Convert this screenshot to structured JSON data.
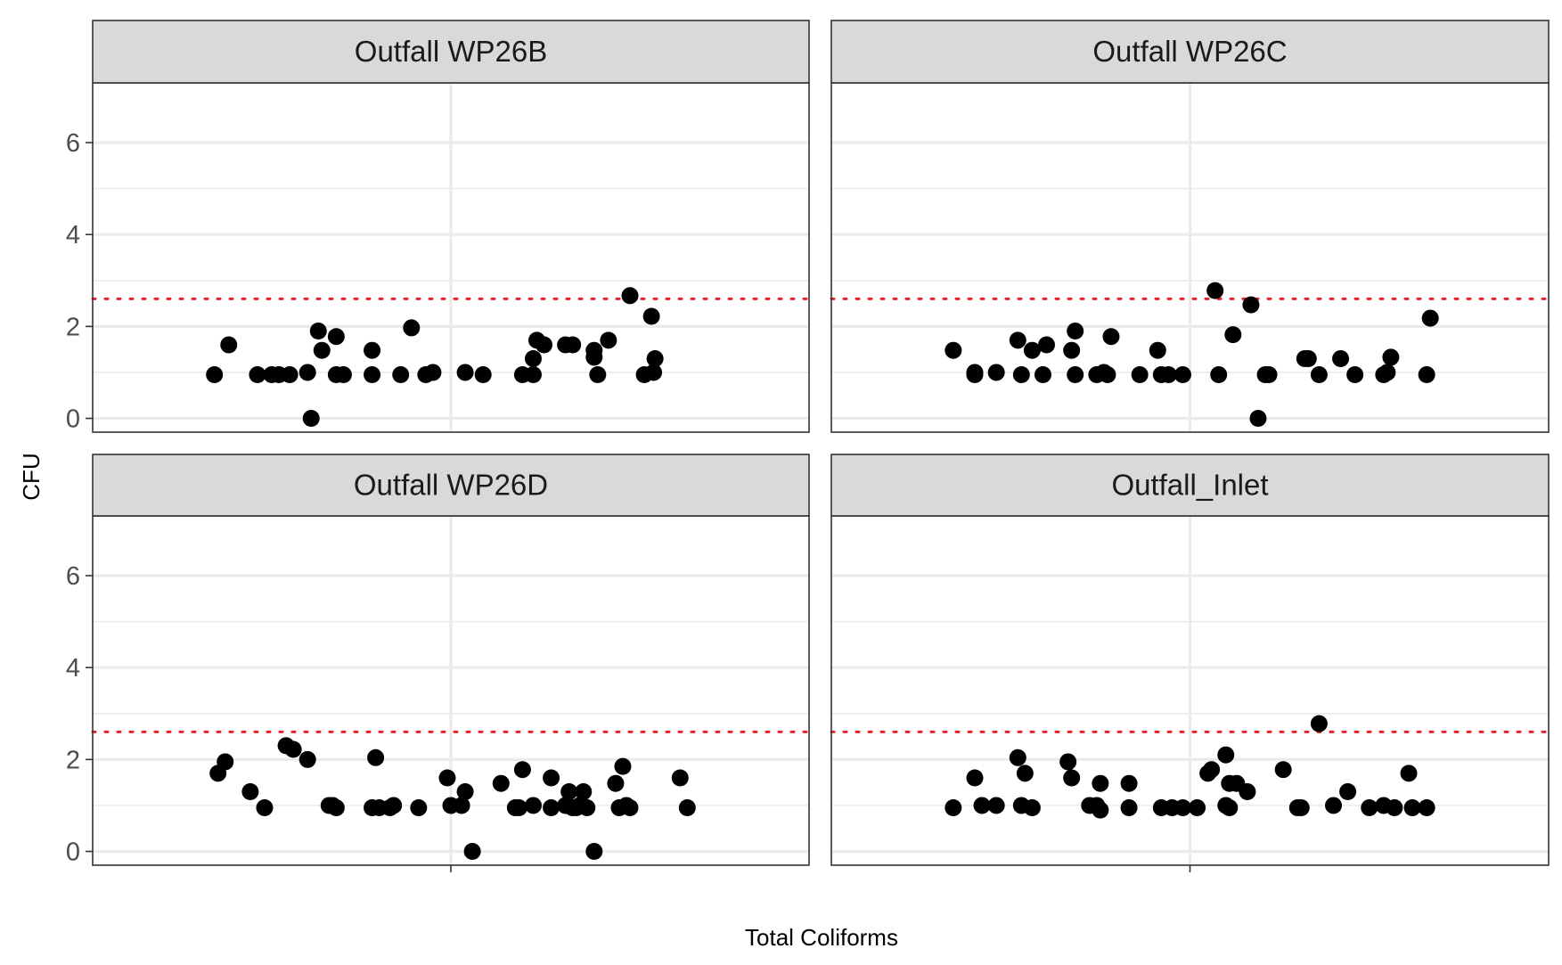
{
  "chart_data": {
    "type": "scatter",
    "xlabel": "Total Coliforms",
    "ylabel": "CFU",
    "ylim": [
      -0.3,
      7.3
    ],
    "yticks": [
      0,
      2,
      4,
      6
    ],
    "x_ticks": [
      ""
    ],
    "grid": true,
    "threshold": {
      "value": 2.6,
      "style": "dotted",
      "color": "#e8202a"
    },
    "point_color": "#000000",
    "panels": [
      {
        "title": "Outfall WP26B",
        "points": [
          [
            0.17,
            0.95
          ],
          [
            0.19,
            1.6
          ],
          [
            0.23,
            0.95
          ],
          [
            0.25,
            0.95
          ],
          [
            0.26,
            0.95
          ],
          [
            0.275,
            0.95
          ],
          [
            0.3,
            1.0
          ],
          [
            0.305,
            0.0
          ],
          [
            0.315,
            1.9
          ],
          [
            0.32,
            1.48
          ],
          [
            0.34,
            0.95
          ],
          [
            0.34,
            1.78
          ],
          [
            0.35,
            0.95
          ],
          [
            0.39,
            1.48
          ],
          [
            0.39,
            0.95
          ],
          [
            0.43,
            0.95
          ],
          [
            0.445,
            1.97
          ],
          [
            0.465,
            0.95
          ],
          [
            0.475,
            1.0
          ],
          [
            0.52,
            1.0
          ],
          [
            0.545,
            0.95
          ],
          [
            0.6,
            0.95
          ],
          [
            0.615,
            1.3
          ],
          [
            0.62,
            1.7
          ],
          [
            0.615,
            0.95
          ],
          [
            0.63,
            1.6
          ],
          [
            0.66,
            1.6
          ],
          [
            0.67,
            1.6
          ],
          [
            0.7,
            1.48
          ],
          [
            0.7,
            1.33
          ],
          [
            0.705,
            0.95
          ],
          [
            0.72,
            1.7
          ],
          [
            0.75,
            2.67
          ],
          [
            0.77,
            0.95
          ],
          [
            0.78,
            2.22
          ],
          [
            0.783,
            1.0
          ],
          [
            0.785,
            1.3
          ]
        ]
      },
      {
        "title": "Outfall WP26C",
        "points": [
          [
            0.17,
            1.48
          ],
          [
            0.2,
            1.0
          ],
          [
            0.2,
            0.95
          ],
          [
            0.23,
            1.0
          ],
          [
            0.26,
            1.7
          ],
          [
            0.265,
            0.95
          ],
          [
            0.28,
            1.48
          ],
          [
            0.295,
            0.95
          ],
          [
            0.3,
            1.6
          ],
          [
            0.335,
            1.48
          ],
          [
            0.34,
            0.95
          ],
          [
            0.34,
            1.9
          ],
          [
            0.37,
            0.95
          ],
          [
            0.38,
            1.0
          ],
          [
            0.385,
            0.95
          ],
          [
            0.39,
            1.78
          ],
          [
            0.43,
            0.95
          ],
          [
            0.455,
            1.48
          ],
          [
            0.46,
            0.95
          ],
          [
            0.47,
            0.95
          ],
          [
            0.49,
            0.95
          ],
          [
            0.535,
            2.78
          ],
          [
            0.54,
            0.95
          ],
          [
            0.56,
            1.82
          ],
          [
            0.585,
            2.47
          ],
          [
            0.595,
            0.0
          ],
          [
            0.605,
            0.95
          ],
          [
            0.61,
            0.95
          ],
          [
            0.66,
            1.3
          ],
          [
            0.665,
            1.3
          ],
          [
            0.68,
            0.95
          ],
          [
            0.71,
            1.3
          ],
          [
            0.73,
            0.95
          ],
          [
            0.77,
            0.95
          ],
          [
            0.775,
            1.0
          ],
          [
            0.78,
            1.33
          ],
          [
            0.83,
            0.95
          ],
          [
            0.835,
            2.18
          ]
        ]
      },
      {
        "title": "Outfall WP26D",
        "points": [
          [
            0.175,
            1.7
          ],
          [
            0.185,
            1.95
          ],
          [
            0.22,
            1.3
          ],
          [
            0.24,
            0.95
          ],
          [
            0.27,
            2.3
          ],
          [
            0.28,
            2.22
          ],
          [
            0.3,
            2.0
          ],
          [
            0.33,
            1.0
          ],
          [
            0.335,
            1.0
          ],
          [
            0.34,
            0.95
          ],
          [
            0.39,
            0.95
          ],
          [
            0.395,
            2.04
          ],
          [
            0.4,
            0.95
          ],
          [
            0.415,
            0.95
          ],
          [
            0.42,
            1.0
          ],
          [
            0.455,
            0.95
          ],
          [
            0.495,
            1.6
          ],
          [
            0.5,
            1.0
          ],
          [
            0.515,
            1.0
          ],
          [
            0.52,
            1.3
          ],
          [
            0.53,
            0.0
          ],
          [
            0.57,
            1.48
          ],
          [
            0.59,
            0.95
          ],
          [
            0.595,
            0.95
          ],
          [
            0.6,
            1.78
          ],
          [
            0.615,
            1.0
          ],
          [
            0.64,
            0.95
          ],
          [
            0.64,
            1.6
          ],
          [
            0.66,
            1.0
          ],
          [
            0.665,
            1.3
          ],
          [
            0.67,
            0.95
          ],
          [
            0.675,
            0.95
          ],
          [
            0.68,
            1.0
          ],
          [
            0.685,
            1.3
          ],
          [
            0.69,
            0.95
          ],
          [
            0.7,
            0.0
          ],
          [
            0.73,
            1.48
          ],
          [
            0.735,
            0.95
          ],
          [
            0.74,
            1.85
          ],
          [
            0.745,
            1.0
          ],
          [
            0.75,
            0.95
          ],
          [
            0.82,
            1.6
          ],
          [
            0.83,
            0.95
          ]
        ]
      },
      {
        "title": "Outfall_Inlet",
        "points": [
          [
            0.17,
            0.95
          ],
          [
            0.2,
            1.6
          ],
          [
            0.21,
            1.0
          ],
          [
            0.23,
            1.0
          ],
          [
            0.26,
            2.04
          ],
          [
            0.265,
            1.0
          ],
          [
            0.27,
            1.7
          ],
          [
            0.28,
            0.95
          ],
          [
            0.33,
            1.95
          ],
          [
            0.335,
            1.6
          ],
          [
            0.36,
            1.0
          ],
          [
            0.37,
            1.0
          ],
          [
            0.375,
            0.9
          ],
          [
            0.375,
            1.48
          ],
          [
            0.415,
            0.95
          ],
          [
            0.415,
            1.48
          ],
          [
            0.46,
            0.95
          ],
          [
            0.475,
            0.95
          ],
          [
            0.49,
            0.95
          ],
          [
            0.51,
            0.95
          ],
          [
            0.525,
            1.7
          ],
          [
            0.53,
            1.78
          ],
          [
            0.55,
            2.1
          ],
          [
            0.555,
            1.48
          ],
          [
            0.565,
            1.48
          ],
          [
            0.58,
            1.3
          ],
          [
            0.55,
            1.0
          ],
          [
            0.555,
            0.95
          ],
          [
            0.63,
            1.78
          ],
          [
            0.65,
            0.95
          ],
          [
            0.655,
            0.95
          ],
          [
            0.68,
            2.78
          ],
          [
            0.7,
            1.0
          ],
          [
            0.72,
            1.3
          ],
          [
            0.75,
            0.95
          ],
          [
            0.77,
            1.0
          ],
          [
            0.785,
            0.95
          ],
          [
            0.805,
            1.7
          ],
          [
            0.81,
            0.95
          ],
          [
            0.83,
            0.95
          ]
        ]
      }
    ]
  }
}
